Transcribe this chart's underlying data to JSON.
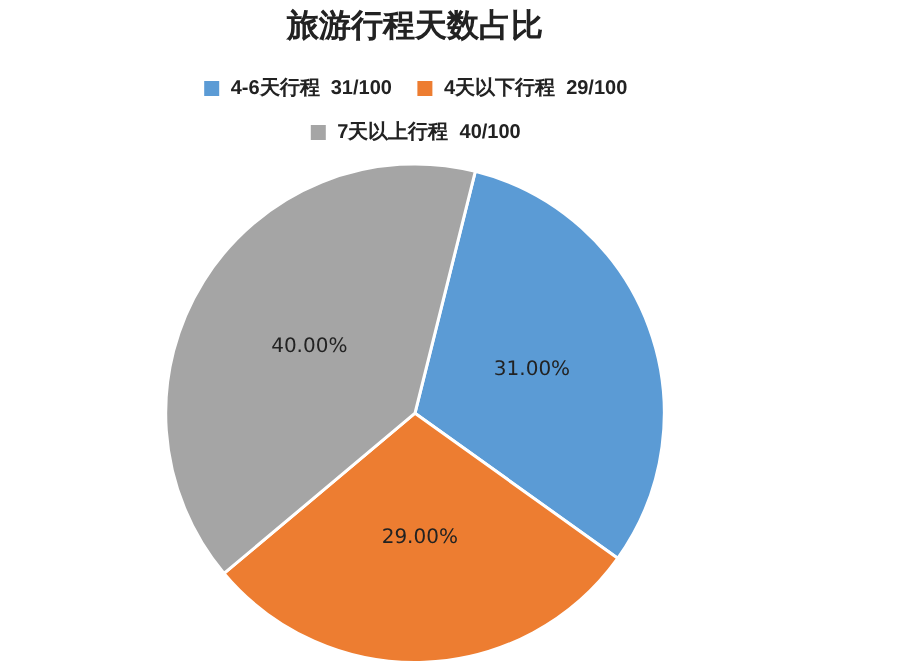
{
  "chart_data": {
    "type": "pie",
    "title": "旅游行程天数占比",
    "categories": [
      "4-6天行程  31/100",
      "4天以下行程  29/100",
      "7天以上行程  40/100"
    ],
    "values": [
      31,
      29,
      40
    ],
    "colors": [
      "#5b9bd5",
      "#ed7d31",
      "#a5a5a5"
    ],
    "value_labels": [
      "31.00%",
      "29.00%",
      "40.00%"
    ],
    "legend": "top"
  }
}
